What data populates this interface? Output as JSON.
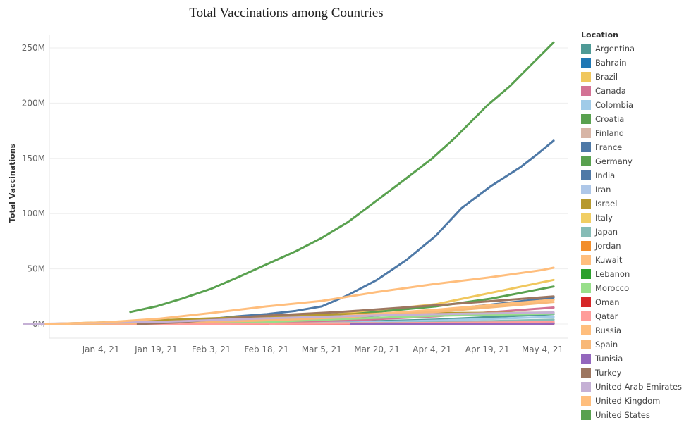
{
  "chart_data": {
    "type": "line",
    "title": "Total Vaccinations among Countries",
    "xlabel": "",
    "ylabel": "Total Vaccinations",
    "x_ticks": [
      "Jan 4, 21",
      "Jan 19, 21",
      "Feb 3, 21",
      "Feb 18, 21",
      "Mar 5, 21",
      "Mar 20, 21",
      "Apr 4, 21",
      "Apr 19, 21",
      "May 4, 21"
    ],
    "y_ticks": [
      "0M",
      "50M",
      "100M",
      "150M",
      "200M",
      "250M"
    ],
    "xlim": [
      "2020-12-21",
      "2021-05-11"
    ],
    "ylim": [
      0,
      260
    ],
    "grid": "horizontal",
    "legend_title": "Location",
    "legend_position": "right",
    "series": [
      {
        "name": "Argentina",
        "color": "#4e9a96",
        "points": [
          [
            "2020-12-29",
            0
          ],
          [
            "2021-01-20",
            0.2
          ],
          [
            "2021-02-15",
            0.8
          ],
          [
            "2021-03-10",
            1.8
          ],
          [
            "2021-04-05",
            4
          ],
          [
            "2021-05-07",
            9
          ]
        ]
      },
      {
        "name": "Bahrain",
        "color": "#1f77b4",
        "points": [
          [
            "2020-12-22",
            0
          ],
          [
            "2021-02-01",
            0.3
          ],
          [
            "2021-03-15",
            0.7
          ],
          [
            "2021-05-07",
            1.1
          ]
        ]
      },
      {
        "name": "Brazil",
        "color": "#f0c75e",
        "points": [
          [
            "2021-01-17",
            0
          ],
          [
            "2021-02-10",
            4
          ],
          [
            "2021-03-10",
            9
          ],
          [
            "2021-04-05",
            18
          ],
          [
            "2021-05-07",
            40
          ]
        ]
      },
      {
        "name": "Canada",
        "color": "#d37295",
        "points": [
          [
            "2020-12-14",
            0
          ],
          [
            "2021-01-15",
            0.6
          ],
          [
            "2021-02-15",
            1.4
          ],
          [
            "2021-03-10",
            3
          ],
          [
            "2021-04-05",
            7
          ],
          [
            "2021-05-07",
            15
          ]
        ]
      },
      {
        "name": "Colombia",
        "color": "#a0cbe8",
        "points": [
          [
            "2021-02-17",
            0
          ],
          [
            "2021-03-15",
            1.5
          ],
          [
            "2021-04-05",
            3.2
          ],
          [
            "2021-05-07",
            6.5
          ]
        ]
      },
      {
        "name": "Croatia",
        "color": "#59a14f",
        "points": [
          [
            "2020-12-27",
            0
          ],
          [
            "2021-02-15",
            0.2
          ],
          [
            "2021-04-05",
            0.7
          ],
          [
            "2021-05-07",
            1.3
          ]
        ]
      },
      {
        "name": "Finland",
        "color": "#d7b5a6",
        "points": [
          [
            "2020-12-27",
            0
          ],
          [
            "2021-02-15",
            0.3
          ],
          [
            "2021-04-05",
            1.2
          ],
          [
            "2021-05-07",
            2.3
          ]
        ]
      },
      {
        "name": "France",
        "color": "#4e79a7",
        "points": [
          [
            "2020-12-27",
            0
          ],
          [
            "2021-01-20",
            0.8
          ],
          [
            "2021-02-15",
            2.5
          ],
          [
            "2021-03-10",
            5
          ],
          [
            "2021-04-05",
            12
          ],
          [
            "2021-05-07",
            24
          ]
        ]
      },
      {
        "name": "Germany",
        "color": "#59a14f",
        "points": [
          [
            "2020-12-27",
            0
          ],
          [
            "2021-01-20",
            1.3
          ],
          [
            "2021-02-15",
            4.5
          ],
          [
            "2021-03-10",
            8
          ],
          [
            "2021-04-05",
            16
          ],
          [
            "2021-04-20",
            23
          ],
          [
            "2021-05-07",
            34
          ]
        ]
      },
      {
        "name": "India",
        "color": "#4e79a7",
        "points": [
          [
            "2021-01-16",
            0
          ],
          [
            "2021-01-25",
            2
          ],
          [
            "2021-02-01",
            4
          ],
          [
            "2021-02-10",
            7
          ],
          [
            "2021-02-18",
            9
          ],
          [
            "2021-02-26",
            12
          ],
          [
            "2021-03-05",
            16
          ],
          [
            "2021-03-12",
            26
          ],
          [
            "2021-03-20",
            40
          ],
          [
            "2021-03-28",
            58
          ],
          [
            "2021-04-05",
            80
          ],
          [
            "2021-04-12",
            105
          ],
          [
            "2021-04-20",
            125
          ],
          [
            "2021-04-28",
            142
          ],
          [
            "2021-05-03",
            155
          ],
          [
            "2021-05-07",
            166
          ]
        ]
      },
      {
        "name": "Iran",
        "color": "#aec7e8",
        "points": [
          [
            "2021-02-09",
            0
          ],
          [
            "2021-03-15",
            0.3
          ],
          [
            "2021-05-07",
            1.2
          ]
        ]
      },
      {
        "name": "Israel",
        "color": "#b6992d",
        "points": [
          [
            "2020-12-19",
            0
          ],
          [
            "2021-01-05",
            1.5
          ],
          [
            "2021-01-20",
            3.5
          ],
          [
            "2021-02-10",
            6
          ],
          [
            "2021-03-10",
            9
          ],
          [
            "2021-04-05",
            10
          ],
          [
            "2021-05-07",
            10.3
          ]
        ]
      },
      {
        "name": "Italy",
        "color": "#f1ce63",
        "points": [
          [
            "2020-12-27",
            0
          ],
          [
            "2021-01-20",
            1.5
          ],
          [
            "2021-02-15",
            3.5
          ],
          [
            "2021-03-10",
            6.5
          ],
          [
            "2021-04-05",
            12
          ],
          [
            "2021-05-07",
            22
          ]
        ]
      },
      {
        "name": "Japan",
        "color": "#86bcb6",
        "points": [
          [
            "2021-02-17",
            0
          ],
          [
            "2021-03-15",
            0.5
          ],
          [
            "2021-04-05",
            1.5
          ],
          [
            "2021-05-07",
            4
          ]
        ]
      },
      {
        "name": "Jordan",
        "color": "#f28e2b",
        "points": [
          [
            "2021-01-13",
            0
          ],
          [
            "2021-03-15",
            0.5
          ],
          [
            "2021-05-07",
            1.2
          ]
        ]
      },
      {
        "name": "Kuwait",
        "color": "#ffbe7d",
        "points": [
          [
            "2020-12-24",
            0
          ],
          [
            "2021-03-15",
            0.5
          ],
          [
            "2021-05-07",
            1.3
          ]
        ]
      },
      {
        "name": "Lebanon",
        "color": "#2ca02c",
        "points": [
          [
            "2021-02-14",
            0
          ],
          [
            "2021-03-20",
            0.2
          ],
          [
            "2021-05-07",
            0.6
          ]
        ]
      },
      {
        "name": "Morocco",
        "color": "#98df8a",
        "points": [
          [
            "2021-01-28",
            0
          ],
          [
            "2021-02-15",
            1.5
          ],
          [
            "2021-03-10",
            4.5
          ],
          [
            "2021-04-05",
            7.5
          ],
          [
            "2021-05-07",
            9.5
          ]
        ]
      },
      {
        "name": "Oman",
        "color": "#d62728",
        "points": [
          [
            "2020-12-27",
            0
          ],
          [
            "2021-03-15",
            0.1
          ],
          [
            "2021-05-07",
            0.3
          ]
        ]
      },
      {
        "name": "Qatar",
        "color": "#ff9d9a",
        "points": [
          [
            "2020-12-23",
            0
          ],
          [
            "2021-03-15",
            0.5
          ],
          [
            "2021-05-07",
            1.8
          ]
        ]
      },
      {
        "name": "Russia",
        "color": "#ffbe7d",
        "points": [
          [
            "2020-12-15",
            0
          ],
          [
            "2021-01-20",
            1
          ],
          [
            "2021-02-15",
            3.5
          ],
          [
            "2021-03-10",
            7
          ],
          [
            "2021-04-05",
            13
          ],
          [
            "2021-05-07",
            22
          ]
        ]
      },
      {
        "name": "Spain",
        "color": "#f8b878",
        "points": [
          [
            "2020-12-27",
            0
          ],
          [
            "2021-01-20",
            1.2
          ],
          [
            "2021-02-15",
            3
          ],
          [
            "2021-03-10",
            6
          ],
          [
            "2021-04-05",
            11
          ],
          [
            "2021-05-07",
            20
          ]
        ]
      },
      {
        "name": "Tunisia",
        "color": "#9467bd",
        "points": [
          [
            "2021-03-13",
            0
          ],
          [
            "2021-05-07",
            0.4
          ]
        ]
      },
      {
        "name": "Turkey",
        "color": "#9d7660",
        "points": [
          [
            "2021-01-14",
            0
          ],
          [
            "2021-01-25",
            1.5
          ],
          [
            "2021-02-15",
            7
          ],
          [
            "2021-03-10",
            11
          ],
          [
            "2021-04-05",
            17
          ],
          [
            "2021-05-07",
            25
          ]
        ]
      },
      {
        "name": "United Arab Emirates",
        "color": "#c5b0d5",
        "points": [
          [
            "2020-12-14",
            0
          ],
          [
            "2021-01-20",
            2
          ],
          [
            "2021-02-15",
            5
          ],
          [
            "2021-03-10",
            7
          ],
          [
            "2021-04-05",
            9
          ],
          [
            "2021-05-07",
            10.5
          ]
        ]
      },
      {
        "name": "United Kingdom",
        "color": "#ffbe7d",
        "points": [
          [
            "2020-12-20",
            0
          ],
          [
            "2021-01-05",
            1.5
          ],
          [
            "2021-01-20",
            5
          ],
          [
            "2021-02-03",
            10
          ],
          [
            "2021-02-18",
            16
          ],
          [
            "2021-03-05",
            21
          ],
          [
            "2021-03-20",
            29
          ],
          [
            "2021-04-04",
            36
          ],
          [
            "2021-04-19",
            42
          ],
          [
            "2021-05-04",
            49
          ],
          [
            "2021-05-07",
            51
          ]
        ]
      },
      {
        "name": "United States",
        "color": "#59a14f",
        "points": [
          [
            "2021-01-12",
            11
          ],
          [
            "2021-01-19",
            16
          ],
          [
            "2021-01-26",
            23
          ],
          [
            "2021-02-03",
            32
          ],
          [
            "2021-02-10",
            42
          ],
          [
            "2021-02-18",
            54
          ],
          [
            "2021-02-26",
            66
          ],
          [
            "2021-03-05",
            78
          ],
          [
            "2021-03-12",
            92
          ],
          [
            "2021-03-20",
            112
          ],
          [
            "2021-03-28",
            132
          ],
          [
            "2021-04-04",
            150
          ],
          [
            "2021-04-10",
            168
          ],
          [
            "2021-04-19",
            198
          ],
          [
            "2021-04-25",
            215
          ],
          [
            "2021-05-01",
            235
          ],
          [
            "2021-05-04",
            245
          ],
          [
            "2021-05-07",
            255
          ]
        ]
      }
    ]
  }
}
